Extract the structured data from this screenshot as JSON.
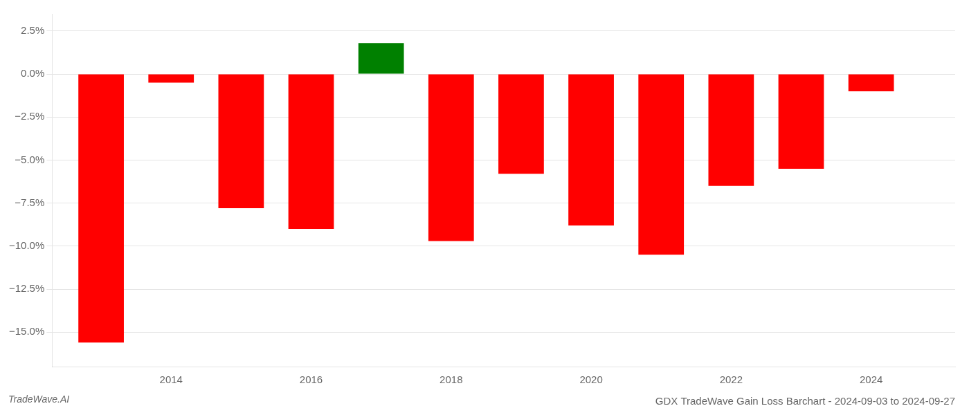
{
  "chart_data": {
    "type": "bar",
    "title": "GDX TradeWave Gain Loss Barchart - 2024-09-03 to 2024-09-27",
    "annotations": [
      "TradeWave.AI"
    ],
    "x": [
      2013,
      2014,
      2015,
      2016,
      2017,
      2018,
      2019,
      2020,
      2021,
      2022,
      2023,
      2024
    ],
    "values": [
      -15.6,
      -0.5,
      -7.8,
      -9.0,
      1.8,
      -9.7,
      -5.8,
      -8.8,
      -10.5,
      -6.5,
      -5.5,
      -1.0
    ],
    "colors": [
      "#ff0000",
      "#ff0000",
      "#ff0000",
      "#ff0000",
      "#008000",
      "#ff0000",
      "#ff0000",
      "#ff0000",
      "#ff0000",
      "#ff0000",
      "#ff0000",
      "#ff0000"
    ],
    "xlim": [
      2012.3,
      2025.2
    ],
    "xticks": [
      2014,
      2016,
      2018,
      2020,
      2022,
      2024
    ],
    "ylim": [
      -17.0,
      3.5
    ],
    "yticks": [
      {
        "value": 2.5,
        "label": "2.5%"
      },
      {
        "value": 0.0,
        "label": "0.0%"
      },
      {
        "value": -2.5,
        "label": "−2.5%"
      },
      {
        "value": -5.0,
        "label": "−5.0%"
      },
      {
        "value": -7.5,
        "label": "−7.5%"
      },
      {
        "value": -10.0,
        "label": "−10.0%"
      },
      {
        "value": -12.5,
        "label": "−12.5%"
      },
      {
        "value": -15.0,
        "label": "−15.0%"
      }
    ],
    "grid": "y",
    "legend": false
  }
}
